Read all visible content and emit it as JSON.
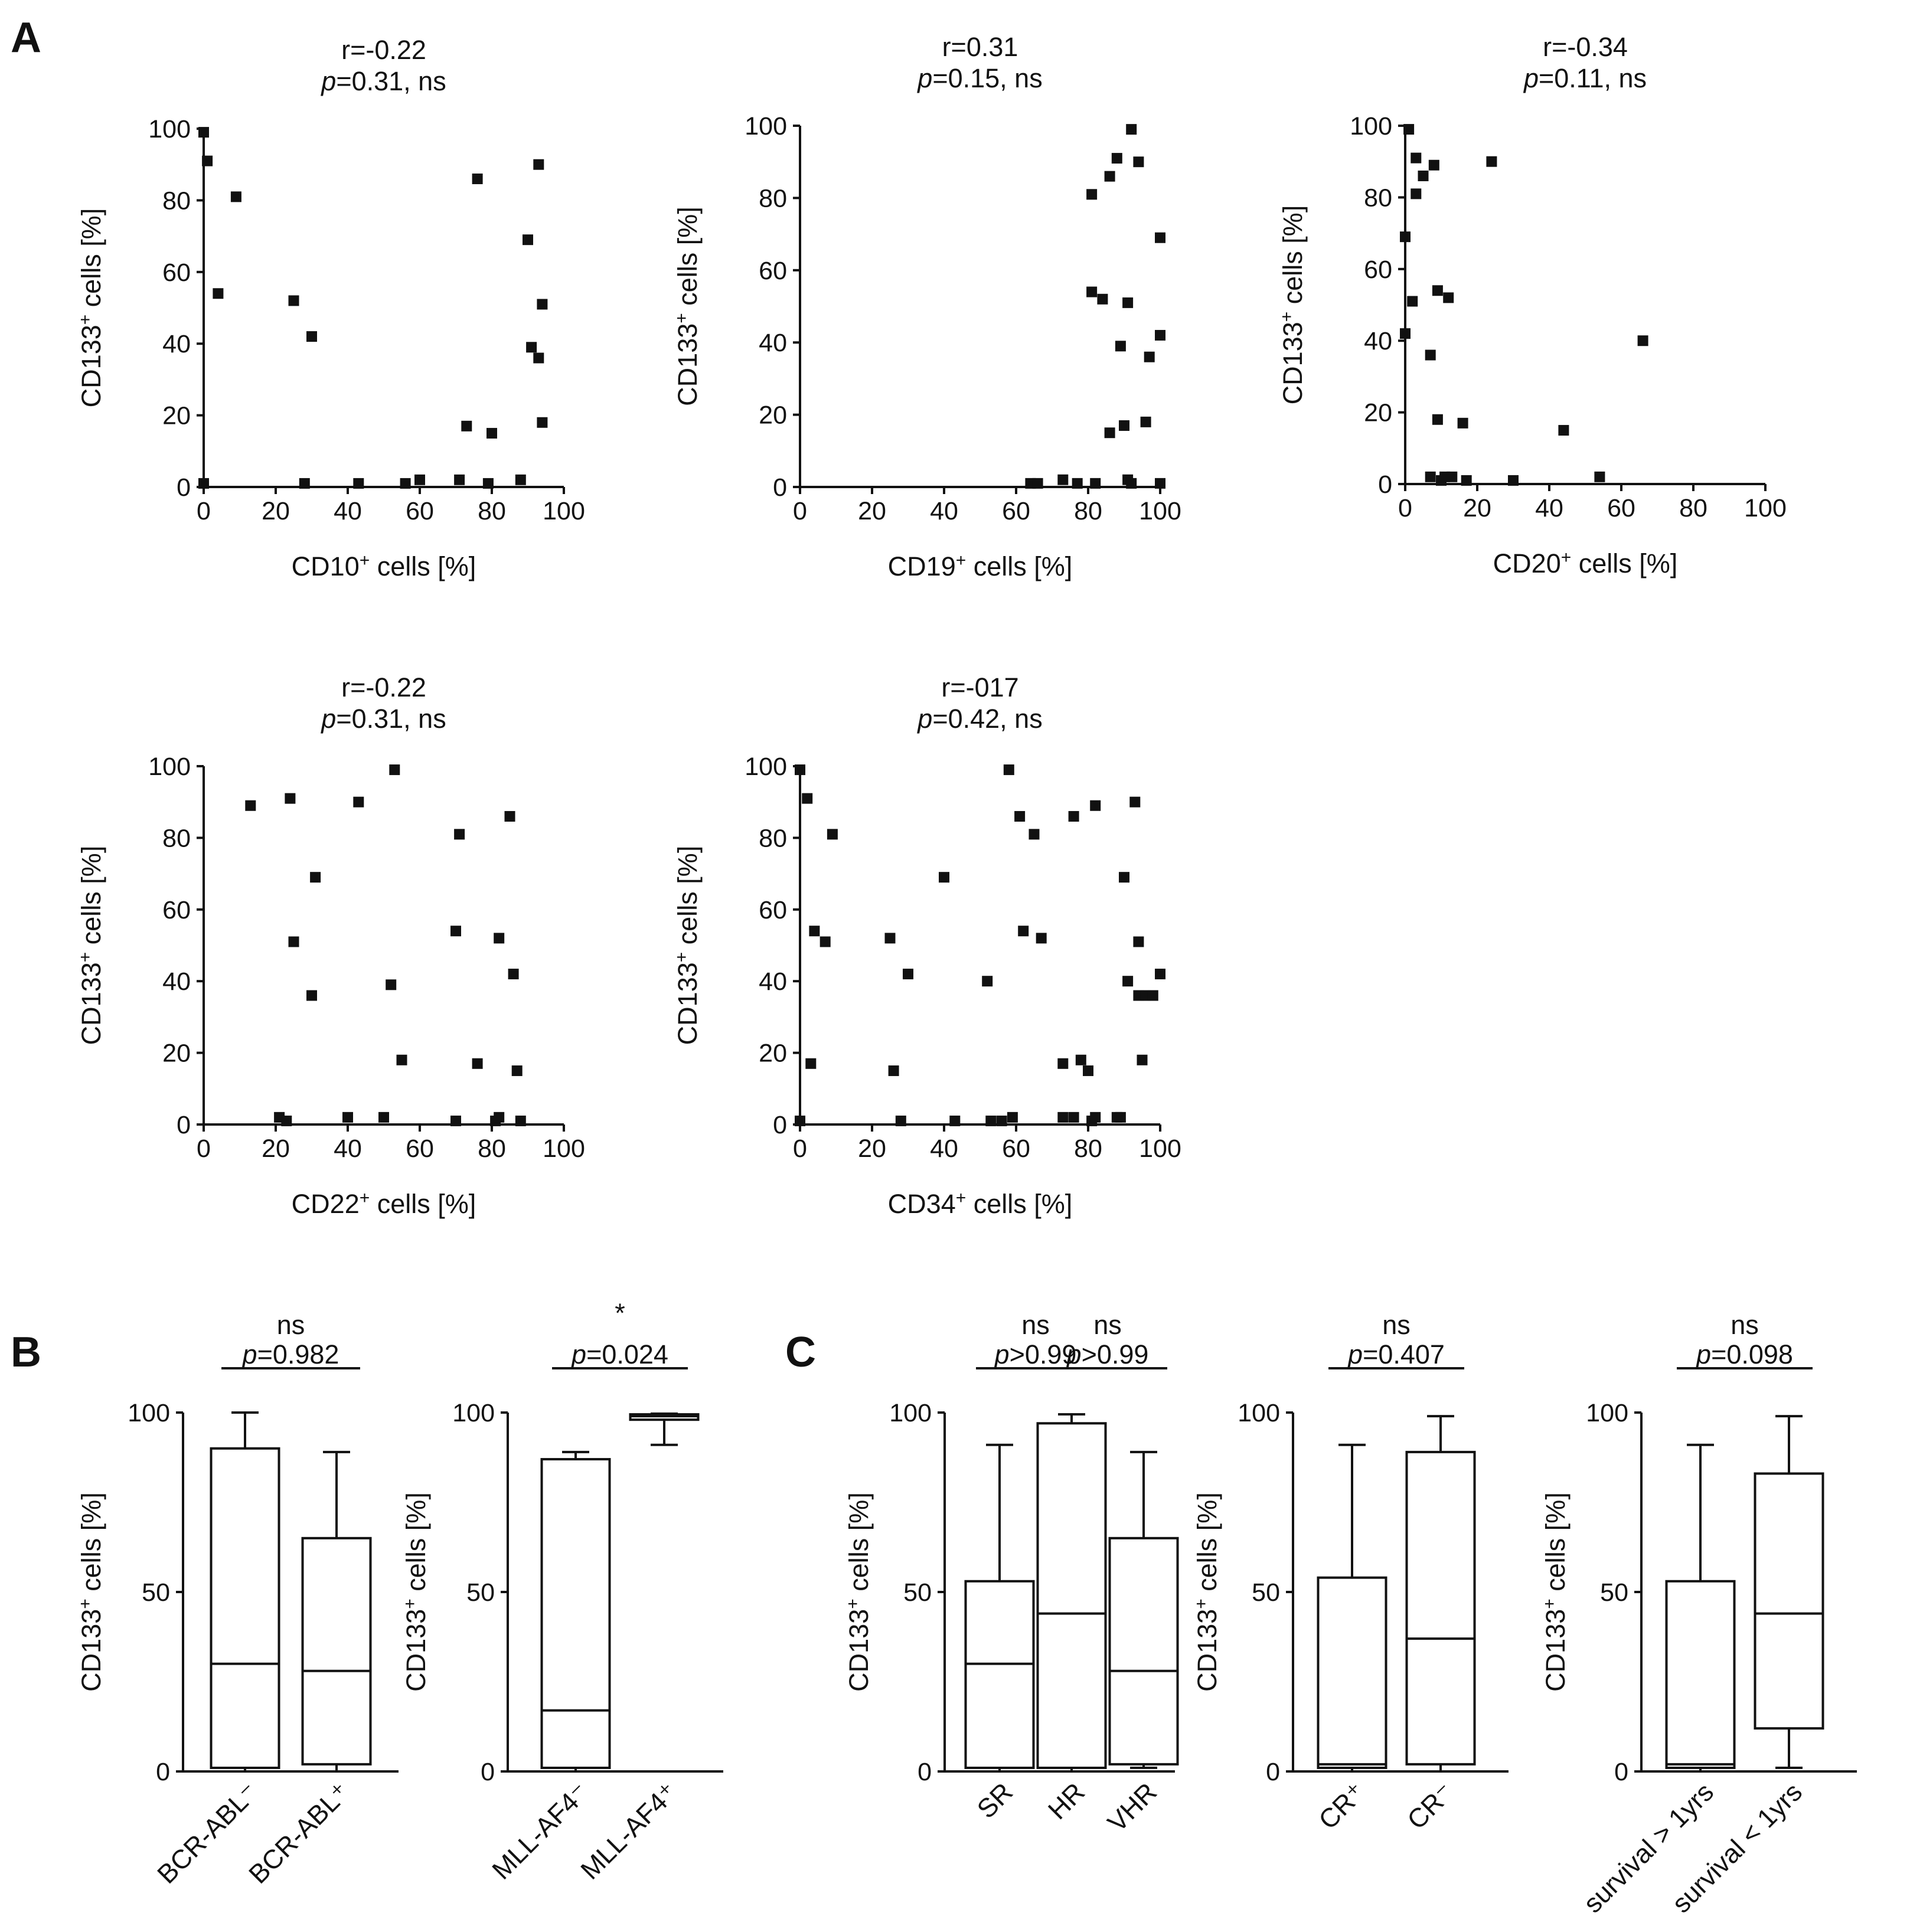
{
  "panel_labels": [
    "A",
    "B",
    "C"
  ],
  "chart_data": [
    {
      "id": "cd10",
      "type": "scatter",
      "title_r": "r=-0.22",
      "title_p": "=0.31, ns",
      "xlabel_pre": "CD10",
      "xlabel_post": " cells [%]",
      "ylabel_pre": "CD133",
      "ylabel_post": " cells [%]",
      "sup": "+",
      "xlim": [
        0,
        100
      ],
      "ylim": [
        0,
        100
      ],
      "xticks": [
        0,
        20,
        40,
        60,
        80,
        100
      ],
      "yticks": [
        0,
        20,
        40,
        60,
        80,
        100
      ],
      "points": [
        [
          0,
          99
        ],
        [
          1,
          91
        ],
        [
          0,
          1
        ],
        [
          4,
          54
        ],
        [
          9,
          81
        ],
        [
          25,
          52
        ],
        [
          28,
          1
        ],
        [
          30,
          42
        ],
        [
          43,
          1
        ],
        [
          56,
          1
        ],
        [
          60,
          2
        ],
        [
          71,
          2
        ],
        [
          73,
          17
        ],
        [
          76,
          86
        ],
        [
          79,
          1
        ],
        [
          80,
          15
        ],
        [
          88,
          2
        ],
        [
          90,
          69
        ],
        [
          91,
          39
        ],
        [
          93,
          36
        ],
        [
          93,
          90
        ],
        [
          94,
          51
        ],
        [
          94,
          18
        ]
      ]
    },
    {
      "id": "cd19",
      "type": "scatter",
      "title_r": "r=0.31",
      "title_p": "=0.15, ns",
      "xlabel_pre": "CD19",
      "xlabel_post": " cells [%]",
      "ylabel_pre": "CD133",
      "ylabel_post": " cells [%]",
      "sup": "+",
      "xlim": [
        0,
        100
      ],
      "ylim": [
        0,
        100
      ],
      "xticks": [
        0,
        20,
        40,
        60,
        80,
        100
      ],
      "yticks": [
        0,
        20,
        40,
        60,
        80,
        100
      ],
      "points": [
        [
          64,
          1
        ],
        [
          66,
          1
        ],
        [
          73,
          2
        ],
        [
          77,
          1
        ],
        [
          81,
          54
        ],
        [
          81,
          81
        ],
        [
          82,
          1
        ],
        [
          84,
          52
        ],
        [
          86,
          86
        ],
        [
          86,
          15
        ],
        [
          88,
          91
        ],
        [
          89,
          39
        ],
        [
          90,
          17
        ],
        [
          91,
          51
        ],
        [
          91,
          2
        ],
        [
          92,
          1
        ],
        [
          92,
          99
        ],
        [
          94,
          90
        ],
        [
          96,
          18
        ],
        [
          97,
          36
        ],
        [
          100,
          69
        ],
        [
          100,
          42
        ],
        [
          100,
          1
        ]
      ]
    },
    {
      "id": "cd20",
      "type": "scatter",
      "title_r": "r=-0.34",
      "title_p": "=0.11, ns",
      "xlabel_pre": "CD20",
      "xlabel_post": " cells [%]",
      "ylabel_pre": "CD133",
      "ylabel_post": " cells [%]",
      "sup": "+",
      "xlim": [
        0,
        100
      ],
      "ylim": [
        0,
        100
      ],
      "xticks": [
        0,
        20,
        40,
        60,
        80,
        100
      ],
      "yticks": [
        0,
        20,
        40,
        60,
        80,
        100
      ],
      "points": [
        [
          0,
          69
        ],
        [
          0,
          42
        ],
        [
          1,
          99
        ],
        [
          2,
          51
        ],
        [
          3,
          81
        ],
        [
          3,
          91
        ],
        [
          5,
          86
        ],
        [
          7,
          36
        ],
        [
          7,
          2
        ],
        [
          8,
          89
        ],
        [
          9,
          18
        ],
        [
          9,
          54
        ],
        [
          10,
          1
        ],
        [
          11,
          2
        ],
        [
          12,
          52
        ],
        [
          13,
          2
        ],
        [
          16,
          17
        ],
        [
          17,
          1
        ],
        [
          24,
          90
        ],
        [
          30,
          1
        ],
        [
          44,
          15
        ],
        [
          54,
          2
        ],
        [
          66,
          40
        ]
      ]
    },
    {
      "id": "cd22",
      "type": "scatter",
      "title_r": "r=-0.22",
      "title_p": "=0.31, ns",
      "xlabel_pre": "CD22",
      "xlabel_post": " cells [%]",
      "ylabel_pre": "CD133",
      "ylabel_post": " cells [%]",
      "sup": "+",
      "xlim": [
        0,
        100
      ],
      "ylim": [
        0,
        100
      ],
      "xticks": [
        0,
        20,
        40,
        60,
        80,
        100
      ],
      "yticks": [
        0,
        20,
        40,
        60,
        80,
        100
      ],
      "points": [
        [
          13,
          89
        ],
        [
          21,
          2
        ],
        [
          23,
          1
        ],
        [
          24,
          91
        ],
        [
          25,
          51
        ],
        [
          30,
          36
        ],
        [
          31,
          69
        ],
        [
          40,
          2
        ],
        [
          43,
          90
        ],
        [
          50,
          2
        ],
        [
          52,
          39
        ],
        [
          53,
          99
        ],
        [
          55,
          18
        ],
        [
          70,
          1
        ],
        [
          70,
          54
        ],
        [
          71,
          81
        ],
        [
          76,
          17
        ],
        [
          81,
          1
        ],
        [
          82,
          2
        ],
        [
          82,
          52
        ],
        [
          85,
          86
        ],
        [
          86,
          42
        ],
        [
          87,
          15
        ],
        [
          88,
          1
        ]
      ]
    },
    {
      "id": "cd34",
      "type": "scatter",
      "title_r": "r=-017",
      "title_p": "=0.42, ns",
      "xlabel_pre": "CD34",
      "xlabel_post": " cells [%]",
      "ylabel_pre": "CD133",
      "ylabel_post": " cells [%]",
      "sup": "+",
      "xlim": [
        0,
        100
      ],
      "ylim": [
        0,
        100
      ],
      "xticks": [
        0,
        20,
        40,
        60,
        80,
        100
      ],
      "yticks": [
        0,
        20,
        40,
        60,
        80,
        100
      ],
      "points": [
        [
          0,
          99
        ],
        [
          0,
          1
        ],
        [
          2,
          91
        ],
        [
          3,
          17
        ],
        [
          4,
          54
        ],
        [
          7,
          51
        ],
        [
          9,
          81
        ],
        [
          25,
          52
        ],
        [
          26,
          15
        ],
        [
          28,
          1
        ],
        [
          30,
          42
        ],
        [
          40,
          69
        ],
        [
          43,
          1
        ],
        [
          52,
          40
        ],
        [
          53,
          1
        ],
        [
          56,
          1
        ],
        [
          58,
          99
        ],
        [
          59,
          2
        ],
        [
          61,
          86
        ],
        [
          62,
          54
        ],
        [
          65,
          81
        ],
        [
          67,
          52
        ],
        [
          73,
          2
        ],
        [
          73,
          17
        ],
        [
          76,
          86
        ],
        [
          76,
          2
        ],
        [
          78,
          18
        ],
        [
          80,
          15
        ],
        [
          81,
          1
        ],
        [
          82,
          89
        ],
        [
          82,
          2
        ],
        [
          88,
          2
        ],
        [
          89,
          2
        ],
        [
          90,
          69
        ],
        [
          91,
          40
        ],
        [
          93,
          90
        ],
        [
          94,
          36
        ],
        [
          94,
          51
        ],
        [
          95,
          18
        ],
        [
          96,
          36
        ],
        [
          98,
          36
        ],
        [
          100,
          42
        ]
      ]
    },
    {
      "id": "bcr",
      "type": "box",
      "ylabel_pre": "CD133",
      "ylabel_post": " cells [%]",
      "sup": "+",
      "ylim": [
        0,
        100
      ],
      "yticks": [
        0,
        50,
        100
      ],
      "categories": [
        "BCR-ABL⁻",
        "BCR-ABL⁺"
      ],
      "boxes": [
        {
          "min": 0,
          "q1": 1,
          "median": 30,
          "q3": 90,
          "max": 100
        },
        {
          "min": 0,
          "q1": 2,
          "median": 28,
          "q3": 65,
          "max": 89
        }
      ],
      "comparisons": [
        {
          "from": 0,
          "to": 1,
          "ns": "ns",
          "p": "=0.982"
        }
      ]
    },
    {
      "id": "mll",
      "type": "box",
      "ylabel_pre": "CD133",
      "ylabel_post": " cells [%]",
      "sup": "+",
      "ylim": [
        0,
        100
      ],
      "yticks": [
        0,
        50,
        100
      ],
      "categories": [
        "MLL-AF4⁻",
        "MLL-AF4⁺"
      ],
      "boxes": [
        {
          "min": 0,
          "q1": 1,
          "median": 17,
          "q3": 87,
          "max": 89
        },
        {
          "min": 91,
          "q1": 98,
          "median": 99,
          "q3": 99.5,
          "max": 99.7
        }
      ],
      "comparisons": [
        {
          "from": 0,
          "to": 1,
          "ns": "*",
          "p": "=0.024"
        }
      ]
    },
    {
      "id": "risk",
      "type": "box",
      "ylabel_pre": "CD133",
      "ylabel_post": " cells [%]",
      "sup": "+",
      "ylim": [
        0,
        100
      ],
      "yticks": [
        0,
        50,
        100
      ],
      "categories": [
        "SR",
        "HR",
        "VHR"
      ],
      "boxes": [
        {
          "min": 0,
          "q1": 1,
          "median": 30,
          "q3": 53,
          "max": 91
        },
        {
          "min": 0,
          "q1": 1,
          "median": 44,
          "q3": 97,
          "max": 99.5
        },
        {
          "min": 1,
          "q1": 2,
          "median": 28,
          "q3": 65,
          "max": 89
        }
      ],
      "comparisons": [
        {
          "from": 0,
          "to": 1,
          "ns": "ns",
          "p": ">0.99"
        },
        {
          "from": 1,
          "to": 2,
          "ns": "ns",
          "p": ">0.99"
        }
      ]
    },
    {
      "id": "cr",
      "type": "box",
      "ylabel_pre": "CD133",
      "ylabel_post": " cells [%]",
      "sup": "+",
      "ylim": [
        0,
        100
      ],
      "yticks": [
        0,
        50,
        100
      ],
      "categories": [
        "CR⁺",
        "CR⁻"
      ],
      "boxes": [
        {
          "min": 0,
          "q1": 1,
          "median": 2,
          "q3": 54,
          "max": 91
        },
        {
          "min": 0,
          "q1": 2,
          "median": 37,
          "q3": 89,
          "max": 99
        }
      ],
      "comparisons": [
        {
          "from": 0,
          "to": 1,
          "ns": "ns",
          "p": "=0.407"
        }
      ]
    },
    {
      "id": "surv",
      "type": "box",
      "ylabel_pre": "CD133",
      "ylabel_post": " cells [%]",
      "sup": "+",
      "ylim": [
        0,
        100
      ],
      "yticks": [
        0,
        50,
        100
      ],
      "categories": [
        "survival > 1yrs",
        "survival < 1yrs"
      ],
      "boxes": [
        {
          "min": 0,
          "q1": 1,
          "median": 2,
          "q3": 53,
          "max": 91
        },
        {
          "min": 1,
          "q1": 12,
          "median": 44,
          "q3": 83,
          "max": 99
        }
      ],
      "comparisons": [
        {
          "from": 0,
          "to": 1,
          "ns": "ns",
          "p": "=0.098"
        }
      ]
    }
  ]
}
